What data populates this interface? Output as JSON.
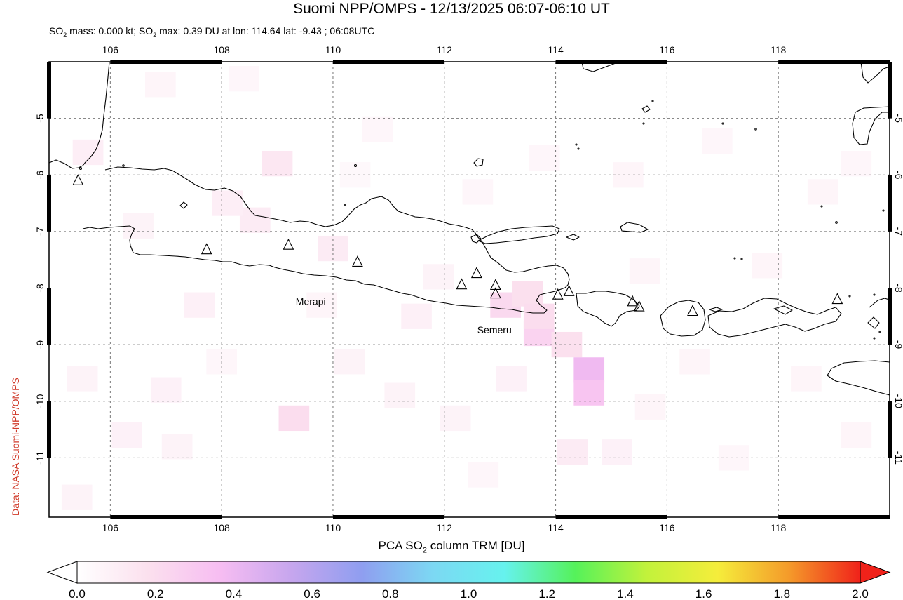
{
  "title": "Suomi NPP/OMPS - 12/13/2025 06:07-06:10 UT",
  "subtitle": {
    "so2_prefix": "SO",
    "sub1": "2",
    "mass_text": " mass: 0.000 kt; SO",
    "sub2": "2",
    "max_text": " max: 0.39 DU at lon: 114.64 lat: -9.43 ; 06:08UTC"
  },
  "credit": "Data: NASA Suomi-NPP/OMPS",
  "map": {
    "lon_range": [
      104.9,
      120.0
    ],
    "lat_range": [
      -12.05,
      -4.0
    ],
    "lon_ticks": [
      106,
      108,
      110,
      112,
      114,
      116,
      118
    ],
    "lon_tick_labels": [
      "106",
      "108",
      "110",
      "112",
      "114",
      "116",
      "118"
    ],
    "lat_ticks": [
      -5,
      -6,
      -7,
      -8,
      -9,
      -10,
      -11
    ],
    "lat_tick_labels": [
      "-5",
      "-6",
      "-7",
      "-8",
      "-9",
      "-10",
      "-11"
    ],
    "grid": true,
    "volcano_labels": [
      {
        "name": "Merapi",
        "lon": 109.6,
        "lat": -8.3
      },
      {
        "name": "Semeru",
        "lon": 112.9,
        "lat": -8.8
      }
    ],
    "volcanoes": [
      {
        "lon": 105.42,
        "lat": -6.1
      },
      {
        "lon": 107.73,
        "lat": -7.32
      },
      {
        "lon": 109.2,
        "lat": -7.24
      },
      {
        "lon": 110.44,
        "lat": -7.54
      },
      {
        "lon": 112.31,
        "lat": -7.94
      },
      {
        "lon": 112.58,
        "lat": -7.74
      },
      {
        "lon": 112.92,
        "lat": -7.95
      },
      {
        "lon": 112.92,
        "lat": -8.1
      },
      {
        "lon": 114.04,
        "lat": -8.12
      },
      {
        "lon": 114.24,
        "lat": -8.06
      },
      {
        "lon": 115.38,
        "lat": -8.24
      },
      {
        "lon": 115.5,
        "lat": -8.33
      },
      {
        "lon": 116.46,
        "lat": -8.41
      },
      {
        "lon": 119.06,
        "lat": -8.2
      }
    ]
  },
  "colorbar": {
    "title_prefix": "PCA SO",
    "title_sub": "2",
    "title_suffix": " column TRM [DU]",
    "min": 0.0,
    "max": 2.0,
    "tick_labels": [
      "0.0",
      "0.2",
      "0.4",
      "0.6",
      "0.8",
      "1.0",
      "1.2",
      "1.4",
      "1.6",
      "1.8",
      "2.0"
    ],
    "stops": [
      "#ffffff",
      "#fbe0ee",
      "#f7bdf2",
      "#c7a6ee",
      "#8f9ef0",
      "#7cd8f3",
      "#66f2ee",
      "#55f25a",
      "#c2f23b",
      "#f5ed3b",
      "#f49a2a",
      "#f0221a"
    ]
  },
  "so2_cells": [
    {
      "lon": 113.1,
      "lat": -8.3,
      "value": 0.22
    },
    {
      "lon": 113.5,
      "lat": -8.1,
      "value": 0.18
    },
    {
      "lon": 113.7,
      "lat": -8.8,
      "value": 0.25
    },
    {
      "lon": 113.7,
      "lat": -8.5,
      "value": 0.2
    },
    {
      "lon": 114.2,
      "lat": -9.0,
      "value": 0.18
    },
    {
      "lon": 114.6,
      "lat": -9.45,
      "value": 0.39
    },
    {
      "lon": 114.6,
      "lat": -9.85,
      "value": 0.32
    },
    {
      "lon": 114.3,
      "lat": -10.9,
      "value": 0.12
    },
    {
      "lon": 109.3,
      "lat": -10.3,
      "value": 0.2
    },
    {
      "lon": 108.6,
      "lat": -6.8,
      "value": 0.12
    },
    {
      "lon": 108.1,
      "lat": -6.5,
      "value": 0.1
    },
    {
      "lon": 109.0,
      "lat": -5.8,
      "value": 0.14
    },
    {
      "lon": 110.0,
      "lat": -7.3,
      "value": 0.12
    },
    {
      "lon": 105.6,
      "lat": -5.6,
      "value": 0.1
    },
    {
      "lon": 111.5,
      "lat": -8.5,
      "value": 0.09
    },
    {
      "lon": 107.6,
      "lat": -8.3,
      "value": 0.09
    },
    {
      "lon": 106.5,
      "lat": -6.9,
      "value": 0.07
    },
    {
      "lon": 107.0,
      "lat": -9.8,
      "value": 0.08
    },
    {
      "lon": 105.5,
      "lat": -9.6,
      "value": 0.07
    },
    {
      "lon": 106.3,
      "lat": -10.6,
      "value": 0.08
    },
    {
      "lon": 107.2,
      "lat": -10.8,
      "value": 0.07
    },
    {
      "lon": 110.3,
      "lat": -9.3,
      "value": 0.07
    },
    {
      "lon": 111.2,
      "lat": -9.9,
      "value": 0.07
    },
    {
      "lon": 112.2,
      "lat": -10.3,
      "value": 0.07
    },
    {
      "lon": 113.2,
      "lat": -9.6,
      "value": 0.08
    },
    {
      "lon": 115.1,
      "lat": -10.9,
      "value": 0.08
    },
    {
      "lon": 115.7,
      "lat": -10.1,
      "value": 0.06
    },
    {
      "lon": 116.5,
      "lat": -9.3,
      "value": 0.06
    },
    {
      "lon": 117.8,
      "lat": -7.6,
      "value": 0.06
    },
    {
      "lon": 118.5,
      "lat": -9.6,
      "value": 0.06
    },
    {
      "lon": 119.4,
      "lat": -10.6,
      "value": 0.06
    },
    {
      "lon": 110.8,
      "lat": -5.2,
      "value": 0.05
    },
    {
      "lon": 112.6,
      "lat": -6.3,
      "value": 0.05
    },
    {
      "lon": 113.8,
      "lat": -5.7,
      "value": 0.05
    },
    {
      "lon": 115.3,
      "lat": -6.0,
      "value": 0.06
    },
    {
      "lon": 116.9,
      "lat": -5.4,
      "value": 0.05
    },
    {
      "lon": 118.8,
      "lat": -6.3,
      "value": 0.06
    },
    {
      "lon": 119.4,
      "lat": -5.8,
      "value": 0.05
    },
    {
      "lon": 106.9,
      "lat": -4.4,
      "value": 0.06
    },
    {
      "lon": 108.4,
      "lat": -4.3,
      "value": 0.05
    },
    {
      "lon": 105.4,
      "lat": -11.7,
      "value": 0.07
    },
    {
      "lon": 109.8,
      "lat": -8.3,
      "value": 0.06
    },
    {
      "lon": 112.7,
      "lat": -11.3,
      "value": 0.05
    },
    {
      "lon": 117.2,
      "lat": -11.0,
      "value": 0.05
    },
    {
      "lon": 111.9,
      "lat": -7.8,
      "value": 0.07
    },
    {
      "lon": 115.6,
      "lat": -7.7,
      "value": 0.06
    },
    {
      "lon": 110.4,
      "lat": -6.0,
      "value": 0.04
    },
    {
      "lon": 108.0,
      "lat": -9.3,
      "value": 0.05
    }
  ]
}
